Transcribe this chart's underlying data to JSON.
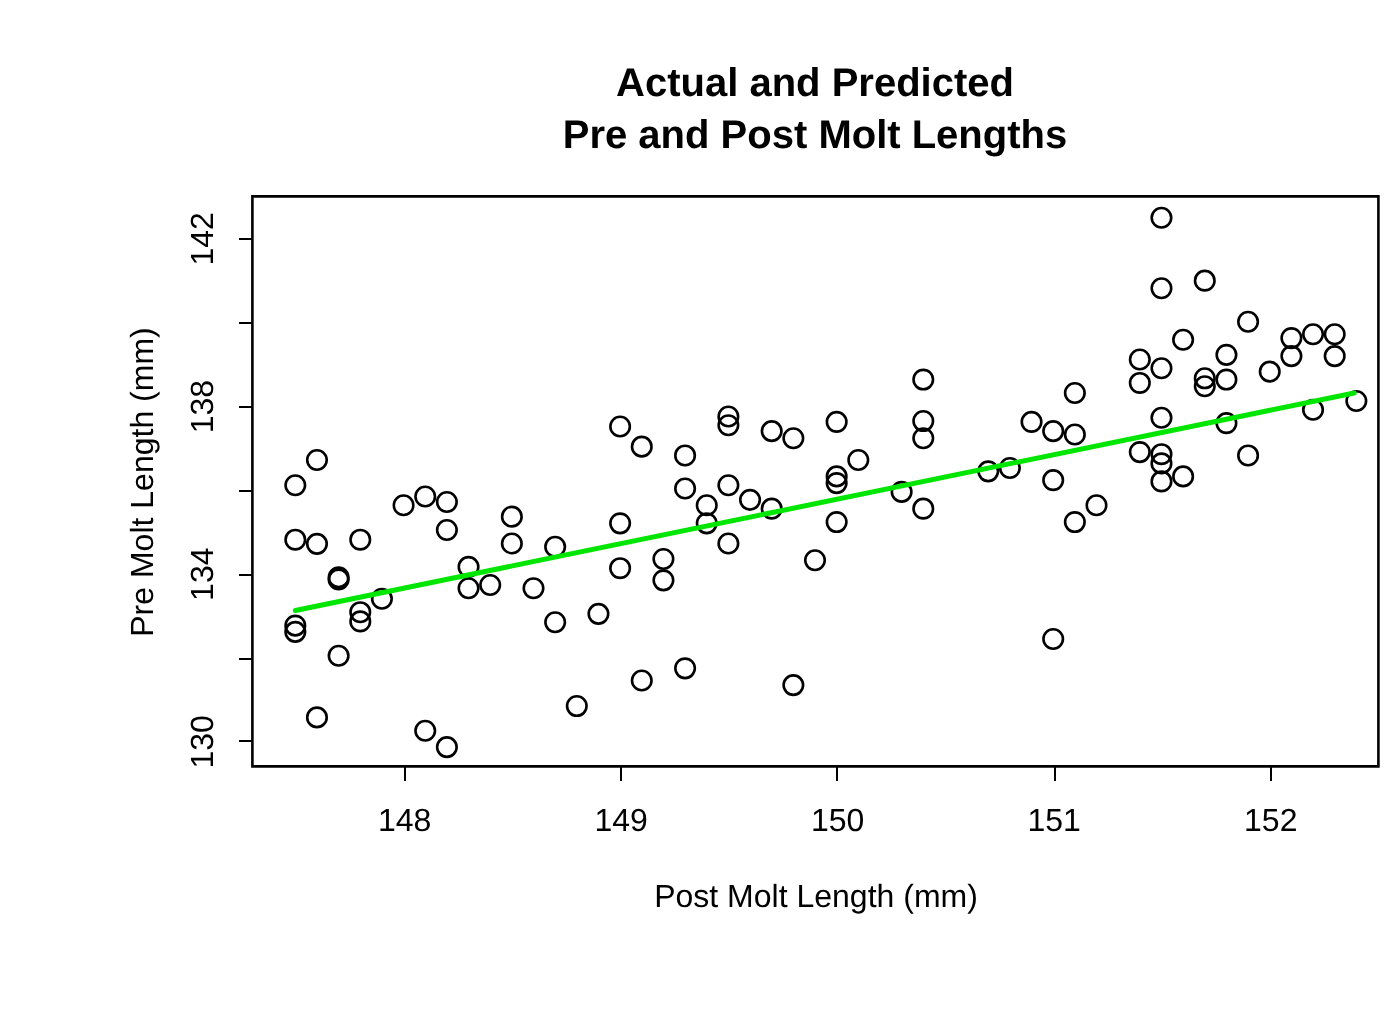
{
  "chart_data": {
    "type": "scatter",
    "title": "Actual and Predicted\nPre and Post Molt Lengths",
    "xlabel": "Post Molt Length (mm)",
    "ylabel": "Pre Molt Length (mm)",
    "xlim": [
      147.3,
      152.5
    ],
    "ylim": [
      129.4,
      143.0
    ],
    "xticks": [
      148,
      149,
      150,
      151,
      152
    ],
    "yticks": [
      130,
      {
        "value": 132,
        "label": null
      },
      134,
      {
        "value": 136,
        "label": null
      },
      138,
      {
        "value": 140,
        "label": null
      },
      142
    ],
    "grid": false,
    "marker": "circle",
    "series": [
      {
        "color": "#000000",
        "x": [
          147.5,
          147.6,
          147.5,
          147.6,
          147.8,
          147.7,
          147.7,
          147.5,
          147.5,
          147.8,
          147.8,
          147.9,
          147.7,
          147.6,
          148.0,
          148.1,
          148.2,
          148.2,
          148.3,
          148.3,
          148.4,
          148.5,
          148.5,
          148.6,
          148.7,
          148.7,
          148.9,
          148.8,
          148.1,
          148.2,
          149.0,
          149.0,
          149.0,
          149.1,
          149.1,
          149.3,
          149.3,
          149.2,
          149.2,
          149.3,
          149.4,
          149.4,
          149.5,
          149.5,
          149.5,
          149.5,
          149.6,
          149.7,
          149.7,
          149.8,
          149.8,
          149.9,
          150.0,
          150.0,
          150.0,
          150.0,
          150.1,
          150.3,
          150.4,
          150.4,
          150.4,
          150.4,
          150.7,
          150.8,
          150.9,
          151.0,
          151.1,
          151.1,
          151.0,
          151.1,
          151.2,
          151.0,
          151.5,
          151.5,
          151.7,
          151.9,
          151.6,
          151.4,
          151.5,
          151.4,
          151.7,
          151.7,
          151.8,
          151.8,
          152.0,
          152.1,
          152.1,
          152.2,
          152.3,
          152.3,
          152.2,
          152.4,
          151.5,
          151.8,
          151.4,
          151.5,
          151.5,
          151.5,
          151.6,
          151.9
        ],
        "values": [
          136.1,
          136.7,
          134.8,
          134.7,
          134.8,
          133.9,
          133.85,
          132.75,
          132.6,
          133.07,
          132.85,
          133.39,
          132.03,
          130.56,
          135.62,
          135.83,
          135.7,
          135.03,
          134.15,
          133.64,
          133.72,
          135.35,
          134.71,
          133.64,
          134.63,
          132.83,
          133.03,
          130.83,
          130.24,
          129.85,
          137.5,
          135.19,
          134.12,
          137.02,
          131.44,
          136.81,
          136.02,
          134.34,
          133.83,
          131.73,
          135.62,
          135.19,
          137.74,
          137.53,
          136.1,
          134.71,
          135.75,
          135.54,
          137.39,
          137.22,
          131.33,
          134.31,
          137.61,
          136.31,
          136.15,
          135.22,
          136.7,
          135.94,
          138.62,
          137.63,
          137.22,
          135.54,
          136.43,
          136.51,
          137.61,
          137.39,
          137.31,
          138.3,
          136.22,
          135.22,
          135.62,
          132.43,
          142.48,
          140.8,
          140.98,
          140.0,
          139.57,
          139.1,
          138.89,
          138.54,
          138.65,
          138.46,
          139.21,
          138.62,
          138.81,
          139.61,
          139.18,
          139.7,
          139.7,
          139.18,
          137.9,
          138.11,
          137.71,
          137.58,
          136.89,
          136.84,
          136.62,
          136.19,
          136.31,
          136.81
        ]
      },
      {
        "type": "line",
        "color": "#00e600",
        "x": [
          147.5,
          152.39
        ],
        "values": [
          133.11,
          138.3
        ],
        "line_style": "solid",
        "marker": "none"
      }
    ]
  }
}
